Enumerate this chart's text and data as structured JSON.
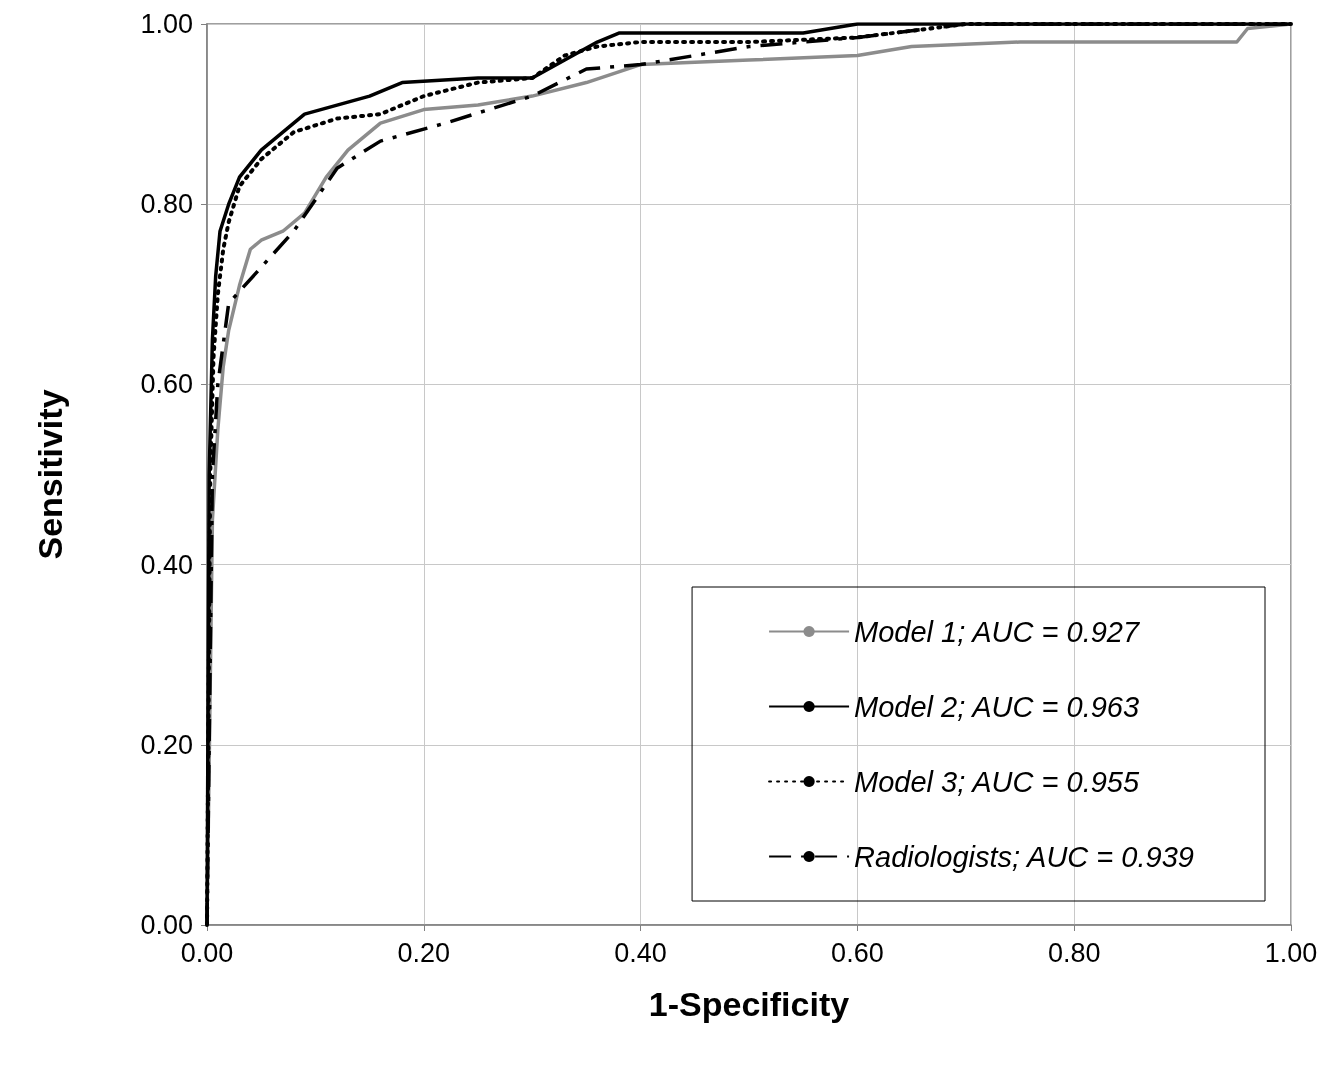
{
  "chart_data": {
    "type": "line",
    "xlabel": "1-Specificity",
    "ylabel": "Sensitivity",
    "xlim": [
      0,
      1
    ],
    "ylim": [
      0,
      1
    ],
    "xticks": [
      {
        "value": 0,
        "label": "0.00"
      },
      {
        "value": 0.2,
        "label": "0.20"
      },
      {
        "value": 0.4,
        "label": "0.40"
      },
      {
        "value": 0.6,
        "label": "0.60"
      },
      {
        "value": 0.8,
        "label": "0.80"
      },
      {
        "value": 1,
        "label": "1.00"
      }
    ],
    "yticks": [
      {
        "value": 0,
        "label": "0.00"
      },
      {
        "value": 0.2,
        "label": "0.20"
      },
      {
        "value": 0.4,
        "label": "0.40"
      },
      {
        "value": 0.6,
        "label": "0.60"
      },
      {
        "value": 0.8,
        "label": "0.80"
      },
      {
        "value": 1,
        "label": "1.00"
      }
    ],
    "grid": true,
    "legend": "bottom right",
    "marker": "none",
    "series": [
      {
        "name": "Model 1; AUC = 0.927",
        "color": "#8c8c8c",
        "line_style": "solid",
        "x": [
          0,
          0.005,
          0.01,
          0.015,
          0.02,
          0.03,
          0.04,
          0.05,
          0.07,
          0.09,
          0.11,
          0.13,
          0.16,
          0.2,
          0.25,
          0.3,
          0.35,
          0.4,
          0.5,
          0.6,
          0.65,
          0.75,
          0.95,
          0.96,
          1
        ],
        "values": [
          0,
          0.45,
          0.55,
          0.62,
          0.66,
          0.71,
          0.75,
          0.76,
          0.77,
          0.79,
          0.83,
          0.86,
          0.89,
          0.905,
          0.91,
          0.92,
          0.935,
          0.955,
          0.96,
          0.965,
          0.975,
          0.98,
          0.98,
          0.995,
          1
        ]
      },
      {
        "name": "Model 2; AUC = 0.963",
        "color": "#000000",
        "line_style": "solid",
        "x": [
          0,
          0.002,
          0.005,
          0.008,
          0.012,
          0.02,
          0.03,
          0.05,
          0.07,
          0.09,
          0.12,
          0.15,
          0.18,
          0.25,
          0.3,
          0.33,
          0.36,
          0.38,
          0.45,
          0.55,
          0.6,
          1
        ],
        "values": [
          0,
          0.5,
          0.65,
          0.72,
          0.77,
          0.8,
          0.83,
          0.86,
          0.88,
          0.9,
          0.91,
          0.92,
          0.935,
          0.94,
          0.94,
          0.96,
          0.98,
          0.99,
          0.99,
          0.99,
          1,
          1
        ]
      },
      {
        "name": "Model 3; AUC = 0.955",
        "color": "#000000",
        "line_style": "dotted",
        "x": [
          0,
          0.003,
          0.006,
          0.01,
          0.015,
          0.02,
          0.03,
          0.05,
          0.08,
          0.12,
          0.16,
          0.2,
          0.25,
          0.3,
          0.33,
          0.36,
          0.4,
          0.5,
          0.6,
          0.7,
          1
        ],
        "values": [
          0,
          0.5,
          0.63,
          0.7,
          0.75,
          0.78,
          0.82,
          0.85,
          0.88,
          0.895,
          0.9,
          0.92,
          0.935,
          0.94,
          0.965,
          0.975,
          0.98,
          0.98,
          0.985,
          1,
          1
        ]
      },
      {
        "name": "Radiologists; AUC = 0.939",
        "color": "#000000",
        "line_style": "dashed",
        "x": [
          0,
          0.005,
          0.01,
          0.02,
          0.05,
          0.08,
          0.12,
          0.16,
          0.22,
          0.3,
          0.35,
          0.4,
          0.5,
          0.6,
          0.7,
          1
        ],
        "values": [
          0,
          0.5,
          0.6,
          0.69,
          0.73,
          0.77,
          0.84,
          0.87,
          0.89,
          0.92,
          0.95,
          0.955,
          0.975,
          0.985,
          1,
          1
        ]
      }
    ]
  }
}
